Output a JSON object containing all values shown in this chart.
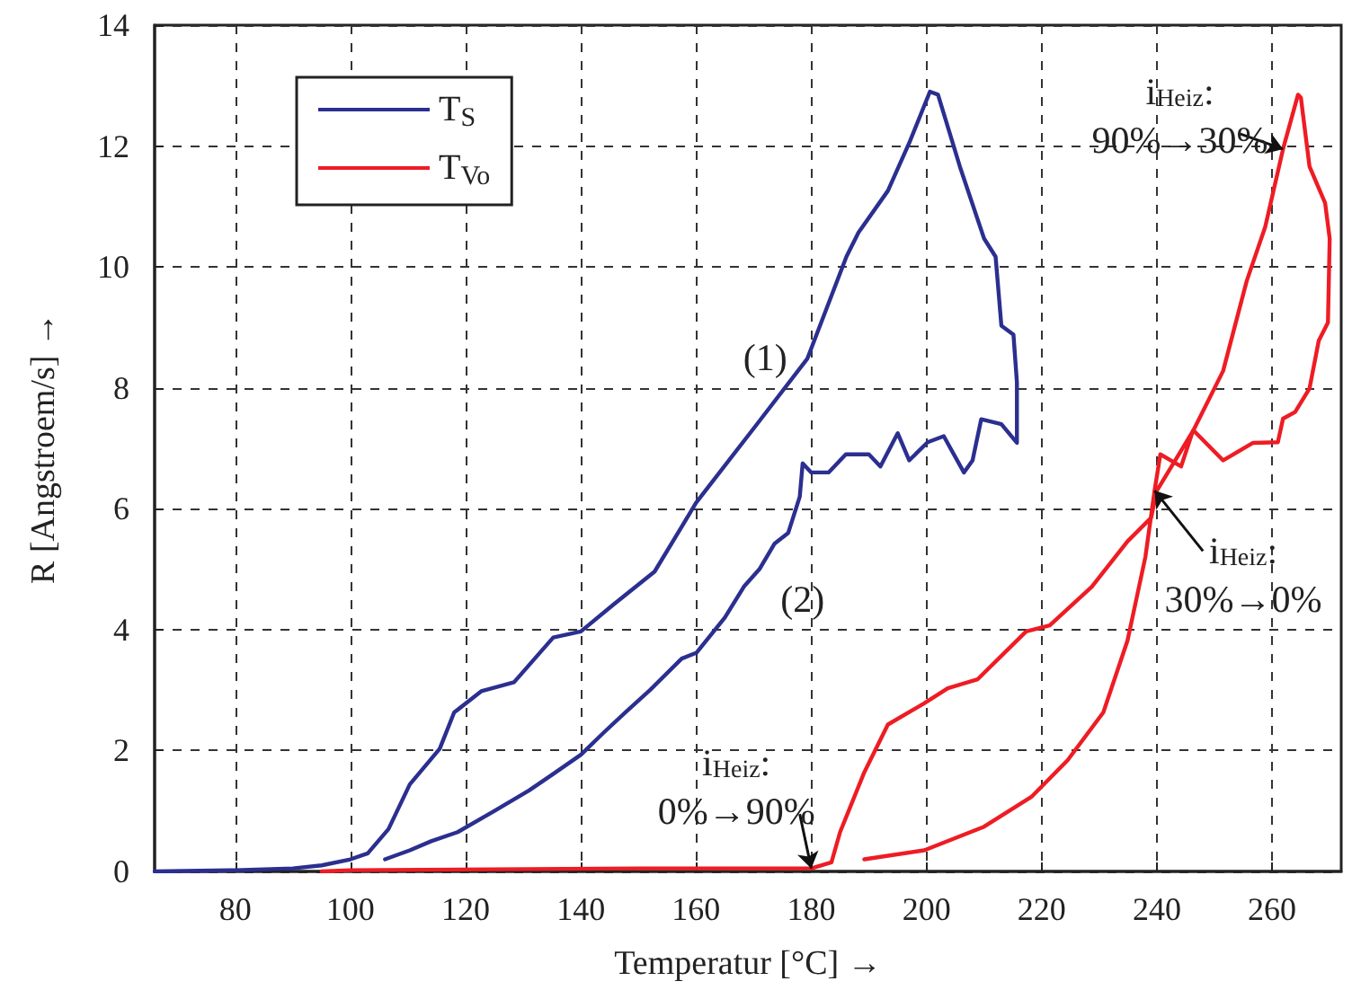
{
  "chart_data": {
    "type": "line",
    "xlabel": "Temperatur [°C] →",
    "ylabel": "R [Angstroem/s] →",
    "xlim": [
      66,
      272
    ],
    "xticks": [
      80,
      100,
      120,
      140,
      160,
      180,
      200,
      220,
      240,
      260
    ],
    "ylim": [
      0,
      14
    ],
    "yticks": [
      0,
      2,
      4,
      6,
      8,
      10,
      12,
      14
    ],
    "grid": true,
    "legend": "top left",
    "marker": "none",
    "line_style": "solid",
    "series": [
      {
        "name": "T$_{S}$",
        "color": "#2b2f8f",
        "x": [
          66,
          80,
          90,
          95,
          100,
          103,
          106.6,
          110.3,
          115.5,
          118,
          122.7,
          128.4,
          135.2,
          140,
          145.6,
          152.8,
          157.5,
          160,
          170.5,
          179.3,
          186.1,
          188.2,
          193.3,
          197,
          200.6,
          202,
          205.8,
          210,
          212,
          213,
          215.1,
          215.7,
          215.7,
          213,
          209.5,
          208,
          206.5,
          203,
          200.2,
          197,
          195,
          192,
          190,
          186,
          183,
          180,
          178.5,
          178,
          176,
          173.6,
          171,
          168.3,
          165,
          160.1,
          157.5,
          152,
          147.7,
          144,
          140,
          135,
          131,
          125,
          118.6,
          114,
          110.3,
          106
        ],
        "values": [
          0,
          0.02,
          0.05,
          0.1,
          0.2,
          0.3,
          0.7,
          1.44,
          2.03,
          2.63,
          2.98,
          3.13,
          3.87,
          3.97,
          4.41,
          4.96,
          5.7,
          6.1,
          7.39,
          8.48,
          10.17,
          10.57,
          11.26,
          12.05,
          12.9,
          12.85,
          11.66,
          10.47,
          10.17,
          9.03,
          8.88,
          8.09,
          7.09,
          7.4,
          7.48,
          6.8,
          6.6,
          7.2,
          7.1,
          6.8,
          7.25,
          6.7,
          6.9,
          6.9,
          6.6,
          6.6,
          6.75,
          6.2,
          5.6,
          5.42,
          5.0,
          4.71,
          4.2,
          3.62,
          3.52,
          3.0,
          2.63,
          2.3,
          1.93,
          1.6,
          1.34,
          1.0,
          0.65,
          0.5,
          0.35,
          0.2
        ]
      },
      {
        "name": "T$_{Vo}$",
        "color": "#ee1c24",
        "x": [
          95,
          100,
          150,
          180,
          183.5,
          185,
          189.2,
          193.3,
          199.6,
          203.7,
          208.9,
          217.3,
          221.4,
          228.7,
          234.9,
          239,
          240,
          246.3,
          251.5,
          255.6,
          258.8,
          261.9,
          264.5,
          265,
          266.5,
          269.2,
          270,
          269.7,
          268.1,
          266.5,
          264,
          261.9,
          261,
          256.7,
          251.5,
          246.3,
          244.2,
          240.6,
          239.6,
          238,
          234.9,
          230.7,
          224.5,
          218.3,
          210,
          199.6,
          189.2
        ],
        "values": [
          0,
          0.02,
          0.05,
          0.05,
          0.15,
          0.65,
          1.64,
          2.43,
          2.78,
          3.03,
          3.18,
          3.97,
          4.07,
          4.71,
          5.46,
          5.85,
          6.3,
          7.29,
          8.28,
          9.77,
          10.66,
          11.95,
          12.85,
          12.8,
          11.66,
          11.06,
          10.47,
          9.08,
          8.78,
          7.99,
          7.6,
          7.49,
          7.1,
          7.09,
          6.8,
          7.3,
          6.7,
          6.9,
          6.3,
          5.2,
          3.82,
          2.63,
          1.84,
          1.24,
          0.74,
          0.35,
          0.2
        ]
      }
    ],
    "annotations": [
      {
        "text": "i$_{Heiz}$:\n0%→90%",
        "x": 180,
        "y": 0.05
      },
      {
        "text": "i$_{Heiz}$:\n90%→30%",
        "x": 261.9,
        "y": 11.95
      },
      {
        "text": "i$_{Heiz}$:\n30%→0%",
        "x": 239.6,
        "y": 6.3
      },
      "(1)",
      "(2)"
    ]
  }
}
